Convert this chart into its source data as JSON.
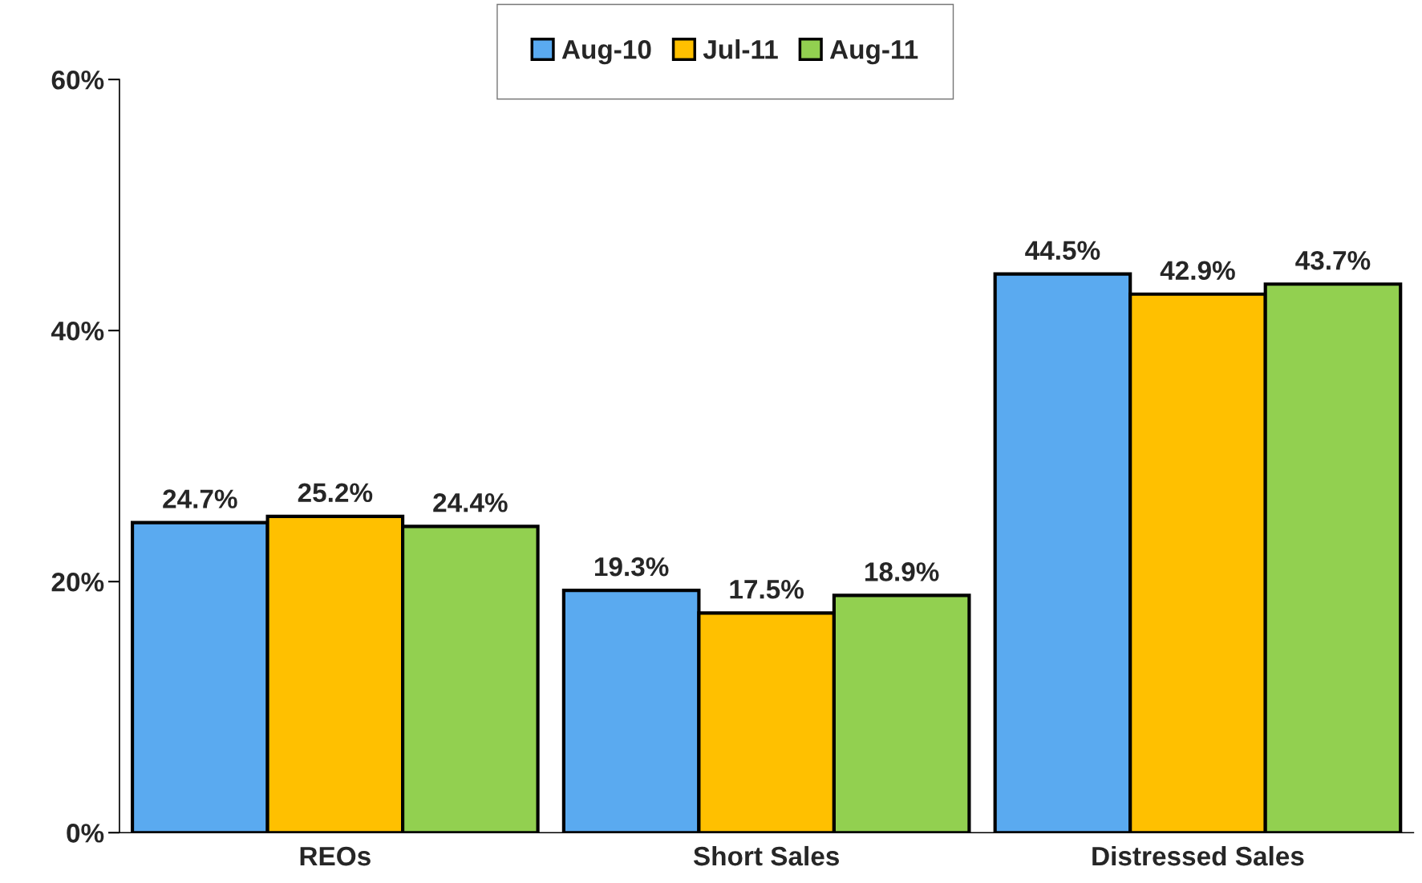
{
  "chart_data": {
    "type": "bar",
    "categories": [
      "REOs",
      "Short Sales",
      "Distressed Sales"
    ],
    "series": [
      {
        "name": "Aug-10",
        "color": "#5aaaf0",
        "values": [
          24.7,
          19.3,
          44.5
        ],
        "value_labels": [
          "24.7%",
          "19.3%",
          "44.5%"
        ]
      },
      {
        "name": "Jul-11",
        "color": "#ffc000",
        "values": [
          25.2,
          17.5,
          42.9
        ],
        "value_labels": [
          "25.2%",
          "17.5%",
          "42.9%"
        ]
      },
      {
        "name": "Aug-11",
        "color": "#92d050",
        "values": [
          24.4,
          18.9,
          43.7
        ],
        "value_labels": [
          "24.4%",
          "18.9%",
          "43.7%"
        ]
      }
    ],
    "ylim": [
      0,
      60
    ],
    "yticks": [
      {
        "value": 0,
        "label": "0%"
      },
      {
        "value": 20,
        "label": "20%"
      },
      {
        "value": 40,
        "label": "40%"
      },
      {
        "value": 60,
        "label": "60%"
      }
    ],
    "legend": "top",
    "grid": false
  }
}
